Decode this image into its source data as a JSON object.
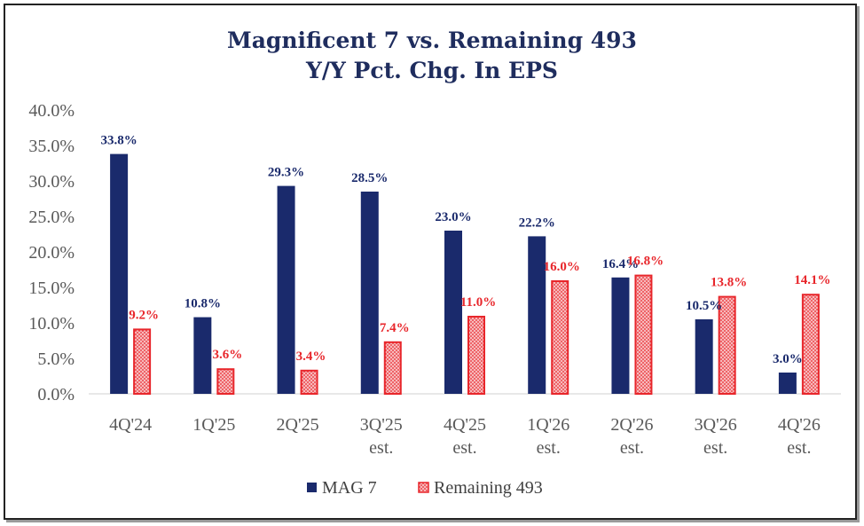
{
  "chart_data": {
    "type": "bar",
    "title": "Magnificent 7 vs. Remaining 493",
    "subtitle": "Y/Y Pct. Chg. In EPS",
    "categories": [
      [
        "4Q'24"
      ],
      [
        "1Q'25"
      ],
      [
        "2Q'25"
      ],
      [
        "3Q'25",
        "est."
      ],
      [
        "4Q'25",
        "est."
      ],
      [
        "1Q'26",
        "est."
      ],
      [
        "2Q'26",
        "est."
      ],
      [
        "3Q'26",
        "est."
      ],
      [
        "4Q'26",
        "est."
      ]
    ],
    "series": [
      {
        "name": "MAG 7",
        "values": [
          33.8,
          10.8,
          29.3,
          28.5,
          23.0,
          22.2,
          16.4,
          10.5,
          3.0
        ],
        "labels": [
          "33.8%",
          "10.8%",
          "29.3%",
          "28.5%",
          "23.0%",
          "22.2%",
          "16.4%",
          "10.5%",
          "3.0%"
        ]
      },
      {
        "name": "Remaining 493",
        "values": [
          9.2,
          3.6,
          3.4,
          7.4,
          11.0,
          16.0,
          16.8,
          13.8,
          14.1
        ],
        "labels": [
          "9.2%",
          "3.6%",
          "3.4%",
          "7.4%",
          "11.0%",
          "16.0%",
          "16.8%",
          "13.8%",
          "14.1%"
        ]
      }
    ],
    "y_ticks": [
      "0.0%",
      "5.0%",
      "10.0%",
      "15.0%",
      "20.0%",
      "25.0%",
      "30.0%",
      "35.0%",
      "40.0%"
    ],
    "ylim": [
      0,
      40
    ],
    "grid": false,
    "legend_position": "bottom",
    "colors": {
      "mag7": "#1a2a6c",
      "rem493": "#e8262b",
      "rem493_fill": "#f7b9bb",
      "title": "#1f2d5e"
    }
  }
}
